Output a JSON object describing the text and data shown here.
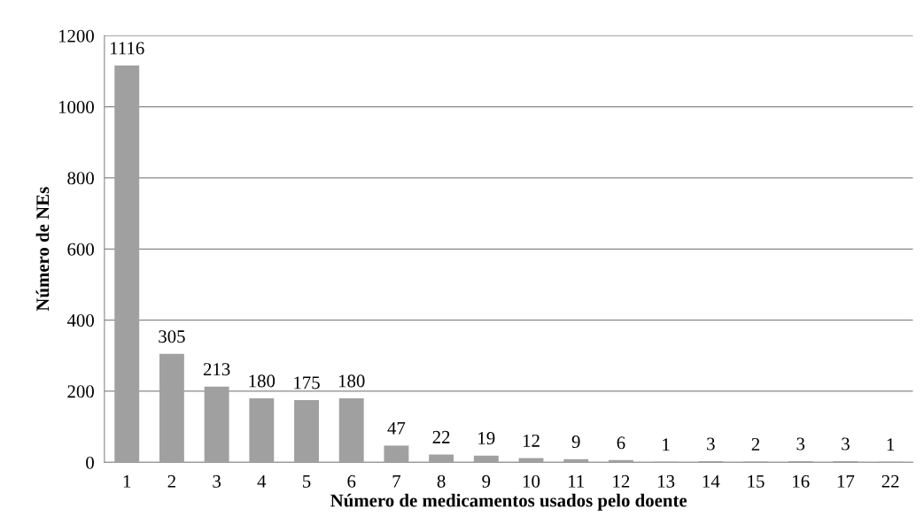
{
  "chart_data": {
    "type": "bar",
    "xlabel": "Número de medicamentos usados pelo doente",
    "ylabel": "Número de NEs",
    "categories": [
      "1",
      "2",
      "3",
      "4",
      "5",
      "6",
      "7",
      "8",
      "9",
      "10",
      "11",
      "12",
      "13",
      "14",
      "15",
      "16",
      "17",
      "22"
    ],
    "values": [
      1116,
      305,
      213,
      180,
      175,
      180,
      47,
      22,
      19,
      12,
      9,
      6,
      1,
      3,
      2,
      3,
      3,
      1
    ],
    "color": "#a0a0a0",
    "ylim": [
      0,
      1200
    ],
    "yticks": [
      0,
      200,
      400,
      600,
      800,
      1000,
      1200
    ],
    "grid": "y",
    "data_labels": true
  }
}
